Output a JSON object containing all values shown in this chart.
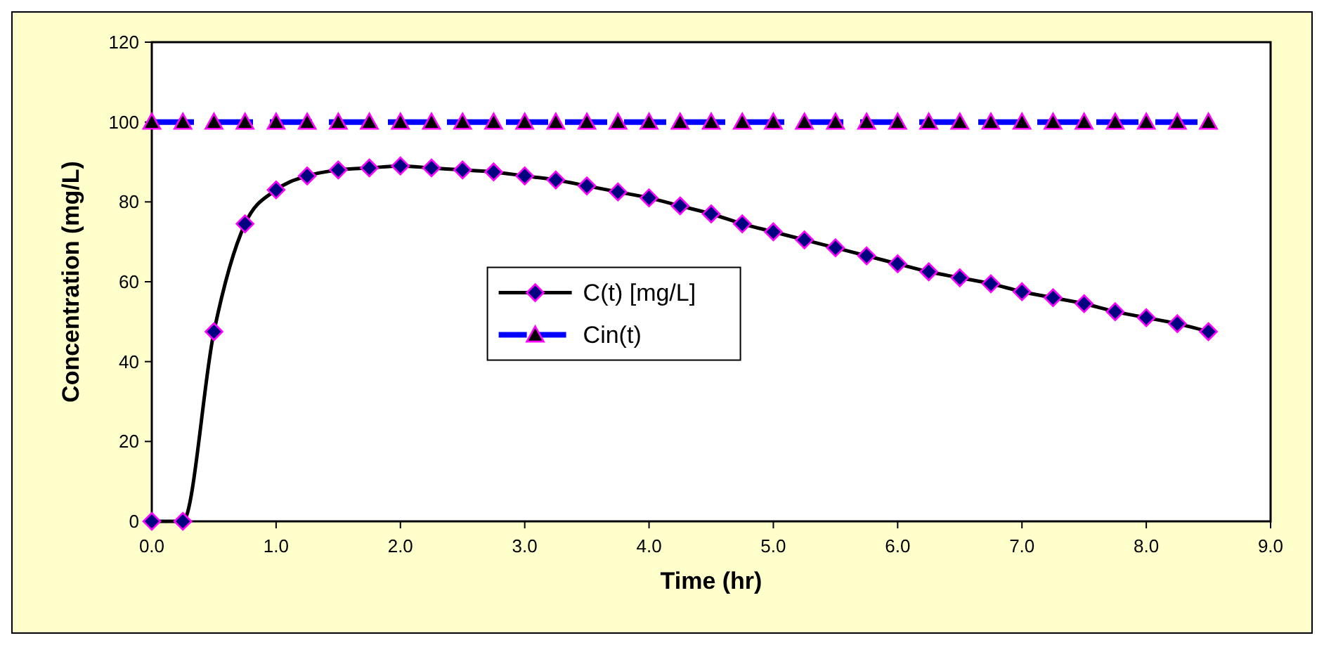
{
  "chart_data": {
    "type": "line",
    "xlabel": "Time (hr)",
    "ylabel": "Concentration (mg/L)",
    "x": [
      0,
      0.25,
      0.5,
      0.75,
      1,
      1.25,
      1.5,
      1.75,
      2,
      2.25,
      2.5,
      2.75,
      3,
      3.25,
      3.5,
      3.75,
      4,
      4.25,
      4.5,
      4.75,
      5,
      5.25,
      5.5,
      5.75,
      6,
      6.25,
      6.5,
      6.75,
      7,
      7.25,
      7.5,
      7.75,
      8,
      8.25,
      8.5
    ],
    "series": [
      {
        "name": "C(t) [mg/L]",
        "color": "#000000",
        "marker": "diamond",
        "line_style": "solid",
        "values": [
          0,
          0,
          47.5,
          74.5,
          83,
          86.5,
          88,
          88.5,
          89,
          88.5,
          88,
          87.5,
          86.5,
          85.5,
          84,
          82.5,
          81,
          79,
          77,
          74.5,
          72.5,
          70.5,
          68.5,
          66.5,
          64.5,
          62.5,
          61,
          59.5,
          57.5,
          56,
          54.5,
          52.5,
          51,
          49.5,
          47.5
        ]
      },
      {
        "name": "Cin(t)",
        "color": "#0000ff",
        "marker": "triangle",
        "line_style": "dashed",
        "values": [
          100,
          100,
          100,
          100,
          100,
          100,
          100,
          100,
          100,
          100,
          100,
          100,
          100,
          100,
          100,
          100,
          100,
          100,
          100,
          100,
          100,
          100,
          100,
          100,
          100,
          100,
          100,
          100,
          100,
          100,
          100,
          100,
          100,
          100,
          100
        ]
      }
    ],
    "xlim": [
      0,
      9
    ],
    "ylim": [
      0,
      120
    ],
    "xticks": [
      {
        "value": 0,
        "label": "0.0"
      },
      {
        "value": 1,
        "label": "1.0"
      },
      {
        "value": 2,
        "label": "2.0"
      },
      {
        "value": 3,
        "label": "3.0"
      },
      {
        "value": 4,
        "label": "4.0"
      },
      {
        "value": 5,
        "label": "5.0"
      },
      {
        "value": 6,
        "label": "6.0"
      },
      {
        "value": 7,
        "label": "7.0"
      },
      {
        "value": 8,
        "label": "8.0"
      },
      {
        "value": 9,
        "label": "9.0"
      }
    ],
    "yticks": [
      0,
      20,
      40,
      60,
      80,
      100,
      120
    ],
    "grid": false,
    "legend": "center"
  }
}
